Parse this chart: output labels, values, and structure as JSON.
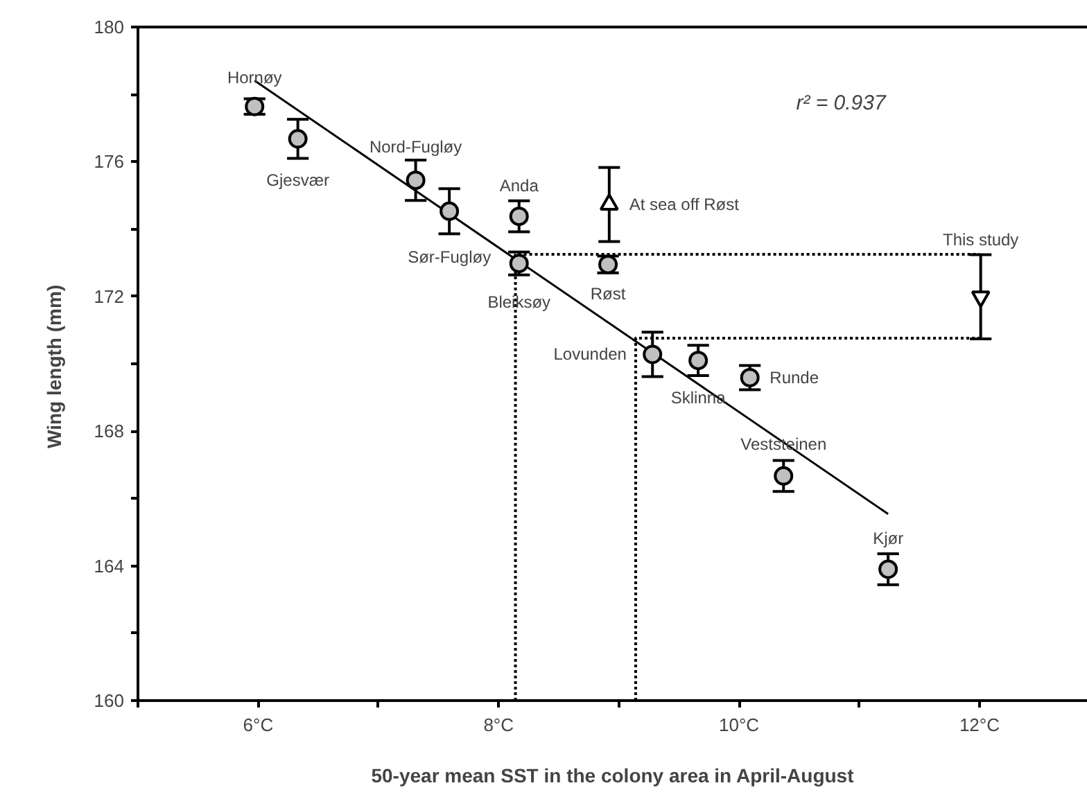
{
  "chart_data": {
    "type": "scatter",
    "xlabel": "50-year mean SST in the colony area in April-August",
    "ylabel": "Wing length  (mm)",
    "xlim": [
      5,
      12.9
    ],
    "ylim": [
      160,
      180
    ],
    "xticks": [
      {
        "value": 5,
        "label": null
      },
      {
        "value": 6,
        "label": "6°C"
      },
      {
        "value": 7,
        "label": null
      },
      {
        "value": 8,
        "label": "8°C"
      },
      {
        "value": 9,
        "label": null
      },
      {
        "value": 10,
        "label": "10°C"
      },
      {
        "value": 11,
        "label": null
      },
      {
        "value": 12,
        "label": "12°C"
      }
    ],
    "yticks": [
      160,
      {
        "value": 162,
        "label": null
      },
      164,
      {
        "value": 166,
        "label": null
      },
      168,
      {
        "value": 170,
        "label": null
      },
      172,
      {
        "value": 174,
        "label": null
      },
      176,
      {
        "value": 178,
        "label": null
      },
      180
    ],
    "grid": false,
    "series": [
      {
        "type": "line",
        "color": "#000000",
        "line_style": "dotted",
        "x": [
          8.14,
          8.14,
          12.0
        ],
        "values": [
          160,
          173.25,
          173.25
        ]
      },
      {
        "type": "line",
        "color": "#000000",
        "line_style": "dotted",
        "x": [
          9.14,
          9.14,
          12.0
        ],
        "values": [
          160,
          170.76,
          170.76
        ]
      },
      {
        "type": "line",
        "color": "#000000",
        "line_style": "solid",
        "x": [
          5.97,
          11.24
        ],
        "values": [
          178.41,
          165.54
        ]
      },
      {
        "color": "#c0c0c0",
        "marker": "circle",
        "x": [
          5.97,
          6.33,
          7.31,
          7.59,
          8.17,
          8.17,
          8.91,
          9.28,
          9.66,
          10.09,
          10.37,
          11.24
        ],
        "values": [
          177.64,
          176.68,
          175.45,
          174.53,
          174.38,
          172.98,
          172.95,
          170.28,
          170.1,
          169.59,
          166.67,
          163.9
        ],
        "errors": [
          0.23,
          0.58,
          0.6,
          0.67,
          0.46,
          0.34,
          0.25,
          0.66,
          0.45,
          0.36,
          0.46,
          0.46
        ]
      },
      {
        "color": "#ffffff",
        "marker": "triangle",
        "x": [
          8.92
        ],
        "values": [
          174.73
        ],
        "errors": [
          1.1
        ]
      },
      {
        "color": "#ffffff",
        "x": [
          12.01
        ],
        "values": [
          171.99
        ],
        "errors": [
          1.25
        ]
      }
    ],
    "annotations": [
      "r² = 0.937",
      {
        "text": "Hornøy",
        "x": 5.97,
        "y": 177.64
      },
      {
        "text": "Gjesvær",
        "x": 6.33,
        "y": 176.68
      },
      {
        "text": "Nord-Fugløy",
        "x": 7.31,
        "y": 175.45
      },
      {
        "text": "Anda",
        "x": 8.17,
        "y": 174.38
      },
      {
        "text": "Sør-Fugløy",
        "x": 7.59,
        "y": 174.53
      },
      {
        "text": "Bleiksøy",
        "x": 8.17,
        "y": 172.98
      },
      {
        "text": "At sea off Røst",
        "x": 8.92,
        "y": 174.73
      },
      {
        "text": "Røst",
        "x": 8.91,
        "y": 172.95
      },
      {
        "text": "This study",
        "x": 12.01,
        "y": 171.99
      },
      {
        "text": "Lovunden",
        "x": 9.28,
        "y": 170.28
      },
      {
        "text": "Sklinna",
        "x": 9.66,
        "y": 170.1
      },
      {
        "text": "Runde",
        "x": 10.09,
        "y": 169.59
      },
      {
        "text": "Veststeinen",
        "x": 10.37,
        "y": 166.67
      },
      {
        "text": "Kjør",
        "x": 11.24,
        "y": 163.9
      }
    ]
  }
}
